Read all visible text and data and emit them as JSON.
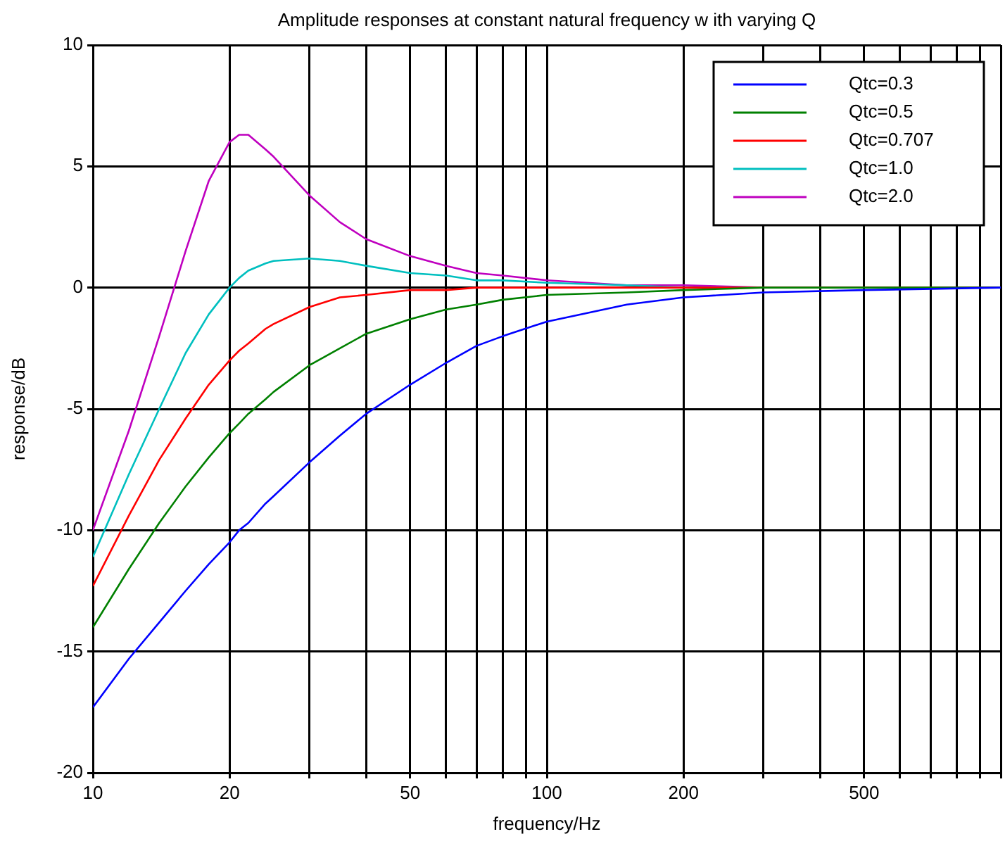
{
  "chart_data": {
    "type": "line",
    "title": "Amplitude responses at constant natural frequency w ith varying Q",
    "xlabel": "frequency/Hz",
    "ylabel": "response/dB",
    "x": [
      10,
      12,
      14,
      16,
      18,
      20,
      21,
      22,
      24,
      25,
      30,
      35,
      40,
      50,
      60,
      70,
      80,
      100,
      150,
      200,
      300,
      500,
      1000
    ],
    "series": [
      {
        "name": "Qtc=0.3",
        "color": "#0000ff",
        "values": [
          -17.3,
          -15.3,
          -13.8,
          -12.5,
          -11.4,
          -10.5,
          -10.0,
          -9.7,
          -8.9,
          -8.6,
          -7.2,
          -6.1,
          -5.2,
          -4.0,
          -3.1,
          -2.4,
          -2.0,
          -1.4,
          -0.7,
          -0.4,
          -0.2,
          -0.1,
          0
        ]
      },
      {
        "name": "Qtc=0.5",
        "color": "#008000",
        "values": [
          -14.0,
          -11.6,
          -9.7,
          -8.2,
          -7.0,
          -6.0,
          -5.6,
          -5.2,
          -4.6,
          -4.3,
          -3.2,
          -2.5,
          -1.9,
          -1.3,
          -0.9,
          -0.7,
          -0.5,
          -0.3,
          -0.2,
          -0.1,
          0,
          0,
          0
        ]
      },
      {
        "name": "Qtc=0.707",
        "color": "#ff0000",
        "values": [
          -12.3,
          -9.4,
          -7.1,
          -5.4,
          -4.0,
          -3.0,
          -2.6,
          -2.3,
          -1.7,
          -1.5,
          -0.8,
          -0.4,
          -0.3,
          -0.1,
          -0.1,
          0,
          0,
          0,
          0,
          0,
          0,
          0,
          0
        ]
      },
      {
        "name": "Qtc=1.0",
        "color": "#00bfbf",
        "values": [
          -11.1,
          -7.7,
          -5.0,
          -2.7,
          -1.1,
          0,
          0.4,
          0.7,
          1.0,
          1.1,
          1.2,
          1.1,
          0.9,
          0.6,
          0.5,
          0.3,
          0.3,
          0.2,
          0.1,
          0,
          0,
          null,
          null
        ]
      },
      {
        "name": "Qtc=2.0",
        "color": "#bf00bf",
        "values": [
          -10.0,
          -5.9,
          -2.0,
          1.5,
          4.4,
          6.0,
          6.3,
          6.3,
          5.7,
          5.4,
          3.8,
          2.7,
          2.0,
          1.3,
          0.9,
          0.6,
          0.5,
          0.3,
          0.1,
          0.1,
          0,
          0,
          0
        ]
      }
    ],
    "log": "x",
    "xlim": [
      10,
      1000
    ],
    "xticks": [
      10,
      20,
      {
        "value": 30,
        "label": null
      },
      {
        "value": 40,
        "label": null
      },
      50,
      {
        "value": 60,
        "label": null
      },
      {
        "value": 70,
        "label": null
      },
      {
        "value": 80,
        "label": null
      },
      {
        "value": 90,
        "label": null
      },
      100,
      200,
      {
        "value": 300,
        "label": null
      },
      {
        "value": 400,
        "label": null
      },
      500,
      {
        "value": 600,
        "label": null
      },
      {
        "value": 700,
        "label": null
      },
      {
        "value": 800,
        "label": null
      },
      {
        "value": 900,
        "label": null
      },
      {
        "value": 1000,
        "label": null
      }
    ],
    "ylim": [
      -20,
      10
    ],
    "yticks": [
      -20,
      -15,
      -10,
      -5,
      0,
      5,
      10
    ],
    "grid": true,
    "legend": "top right",
    "marker": "none",
    "line_style": "solid"
  }
}
